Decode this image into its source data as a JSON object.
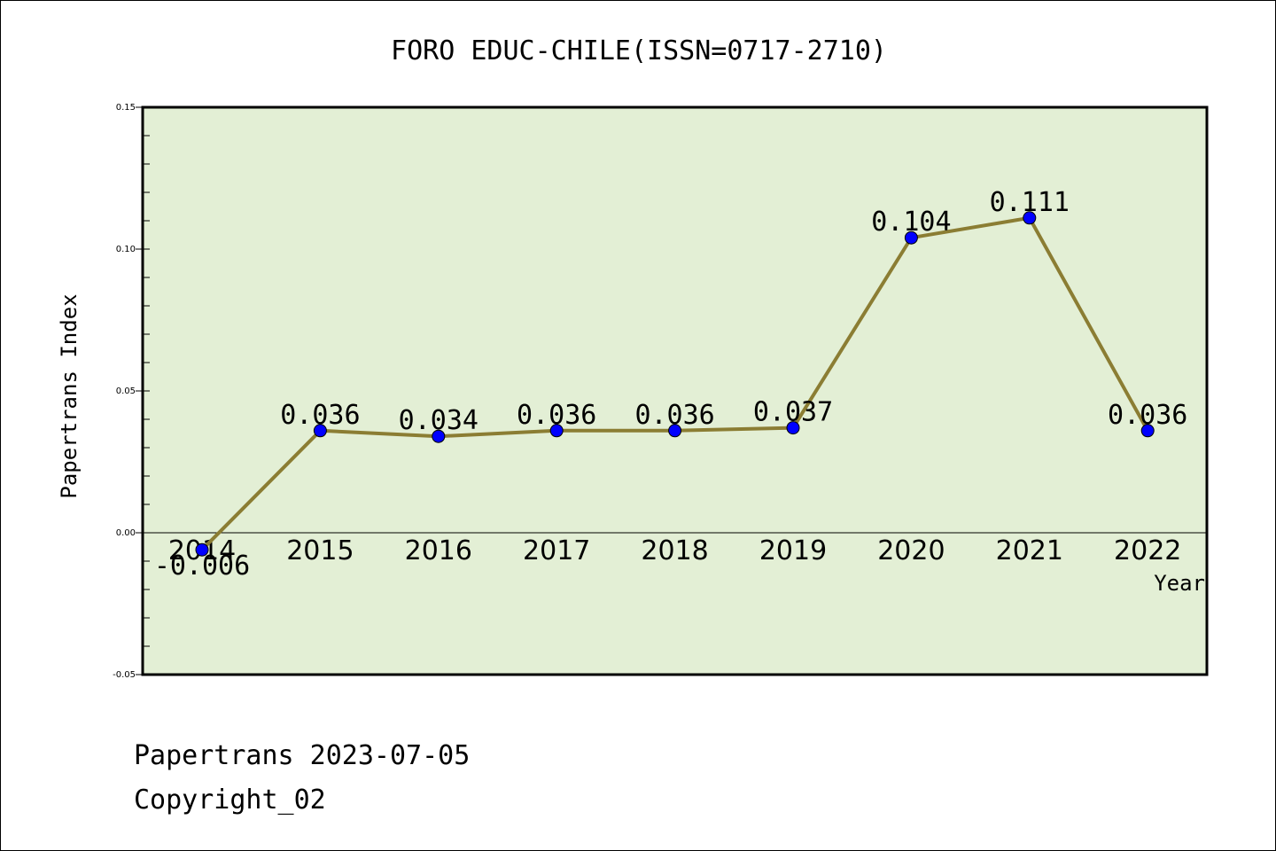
{
  "chart_data": {
    "type": "line",
    "title": "FORO EDUC-CHILE(ISSN=0717-2710)",
    "xlabel": "Year",
    "ylabel": "Papertrans Index",
    "x": [
      "2014",
      "2015",
      "2016",
      "2017",
      "2018",
      "2019",
      "2020",
      "2021",
      "2022"
    ],
    "series": [
      {
        "values": [
          -0.006,
          0.036,
          0.034,
          0.036,
          0.036,
          0.037,
          0.104,
          0.111,
          0.036
        ],
        "labels": [
          "-0.006",
          "0.036",
          "0.034",
          "0.036",
          "0.036",
          "0.037",
          "0.104",
          "0.111",
          "0.036"
        ]
      }
    ],
    "ylim": [
      -0.05,
      0.15
    ],
    "yticks": [
      "-0.05",
      "0.00",
      "0.05",
      "0.10",
      "0.15"
    ],
    "ytick_values": [
      -0.05,
      0.0,
      0.05,
      0.1,
      0.15
    ],
    "grid": false,
    "legend": "none"
  },
  "footer": {
    "line1": "Papertrans 2023-07-05",
    "line2": "Copyright_02"
  },
  "colors": {
    "plot_background": "#e3efd5",
    "line": "#8b7d33",
    "marker": "#0000ff",
    "axis": "#000000"
  }
}
